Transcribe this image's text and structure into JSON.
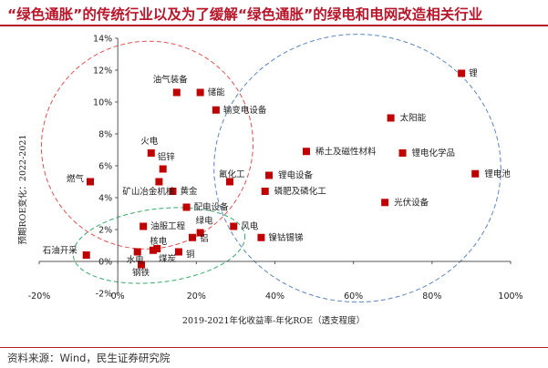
{
  "header": {
    "title": "“绿色通胀”的传统行业以及为了缓解“绿色通胀”的绿电和电网改造相关行业"
  },
  "footer": {
    "source": "资料来源：Wind，民生证券研究院"
  },
  "colors": {
    "title": "#b8162a",
    "marker": "#c00000",
    "red_ellipse": "#e05050",
    "green_ellipse": "#3aaa6a",
    "blue_ellipse": "#5a86c0"
  },
  "chart_data": {
    "type": "scatter",
    "xlabel": "2019-2021年化收益率-年化ROE（透支程度）",
    "ylabel": "预期ROE变化：2022-2021",
    "xlim": [
      -20,
      100
    ],
    "ylim": [
      -2,
      14
    ],
    "x_ticks": [
      "-20%",
      "0%",
      "20%",
      "40%",
      "60%",
      "80%",
      "100%"
    ],
    "y_ticks": [
      "-2%",
      "0%",
      "2%",
      "4%",
      "6%",
      "8%",
      "10%",
      "12%",
      "14%"
    ],
    "grid": false,
    "points": [
      {
        "label": "锂",
        "x": 87.5,
        "y": 11.8
      },
      {
        "label": "太阳能",
        "x": 69.5,
        "y": 9.0
      },
      {
        "label": "锂电化学品",
        "x": 72.5,
        "y": 6.8
      },
      {
        "label": "锂电池",
        "x": 91.0,
        "y": 5.5
      },
      {
        "label": "稀土及磁性材料",
        "x": 48.0,
        "y": 6.9
      },
      {
        "label": "锂电设备",
        "x": 38.5,
        "y": 5.4
      },
      {
        "label": "磷肥及磷化工",
        "x": 37.5,
        "y": 4.4
      },
      {
        "label": "光伏设备",
        "x": 68.0,
        "y": 3.7
      },
      {
        "label": "氟化工",
        "x": 28.5,
        "y": 5.0
      },
      {
        "label": "油气装备",
        "x": 15.0,
        "y": 10.6
      },
      {
        "label": "储能",
        "x": 21.0,
        "y": 10.6
      },
      {
        "label": "输变电设备",
        "x": 25.0,
        "y": 9.5
      },
      {
        "label": "火电",
        "x": 8.5,
        "y": 6.8
      },
      {
        "label": "铝锌",
        "x": 11.5,
        "y": 5.8
      },
      {
        "label": "燃气",
        "x": -7.0,
        "y": 5.0
      },
      {
        "label": "矿山冶金机械",
        "x": 10.5,
        "y": 5.0
      },
      {
        "label": "黄金",
        "x": 14.0,
        "y": 4.4
      },
      {
        "label": "配电设备",
        "x": 17.5,
        "y": 3.4
      },
      {
        "label": "油服工程",
        "x": 6.5,
        "y": 2.2
      },
      {
        "label": "绿电",
        "x": 21.0,
        "y": 1.8
      },
      {
        "label": "铝",
        "x": 19.0,
        "y": 1.5
      },
      {
        "label": "风电",
        "x": 29.5,
        "y": 2.2
      },
      {
        "label": "核电",
        "x": 10.0,
        "y": 0.8
      },
      {
        "label": "铜",
        "x": 15.5,
        "y": 0.6
      },
      {
        "label": "煤炭",
        "x": 9.0,
        "y": 0.7
      },
      {
        "label": "镍钴锡锑",
        "x": 36.5,
        "y": 1.5
      },
      {
        "label": "石油开采",
        "x": -8.0,
        "y": 0.4
      },
      {
        "label": "水电",
        "x": 5.0,
        "y": 0.6
      },
      {
        "label": "钢铁",
        "x": 6.0,
        "y": -0.2
      }
    ],
    "groups": [
      {
        "color": "red",
        "shape": "ellipse",
        "cx": 7.5,
        "cy": 7.3,
        "rx": 27.0,
        "ry": 6.5,
        "rotation_deg": -20
      },
      {
        "color": "green",
        "shape": "ellipse",
        "cx": 10.5,
        "cy": 1.0,
        "rx": 22.0,
        "ry": 2.3,
        "rotation_deg": -7
      },
      {
        "color": "blue",
        "shape": "ellipse",
        "cx": 61.0,
        "cy": 5.85,
        "rx": 36.5,
        "ry": 8.4,
        "rotation_deg": 0
      }
    ]
  }
}
